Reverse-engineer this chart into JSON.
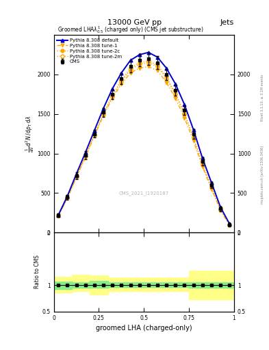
{
  "title_top": "13000 GeV pp",
  "title_right": "Jets",
  "plot_title": "Groomed LHA$\\lambda^{1}_{0.5}$ (charged only) (CMS jet substructure)",
  "xlabel": "groomed LHA (charged-only)",
  "ylabel_ratio": "Ratio to CMS",
  "watermark": "CMS_2021_I1920187",
  "rivet_text": "Rivet 3.1.10, ≥ 3.1M events",
  "inspire_text": "mcplots.cern.ch [arXiv:1306.3436]",
  "x_data": [
    0.025,
    0.075,
    0.125,
    0.175,
    0.225,
    0.275,
    0.325,
    0.375,
    0.425,
    0.475,
    0.525,
    0.575,
    0.625,
    0.675,
    0.725,
    0.775,
    0.825,
    0.875,
    0.925,
    0.975
  ],
  "cms_data": [
    220,
    450,
    720,
    980,
    1250,
    1520,
    1750,
    1950,
    2100,
    2180,
    2200,
    2150,
    2000,
    1800,
    1550,
    1250,
    900,
    600,
    300,
    100
  ],
  "cms_errors": [
    20,
    30,
    40,
    50,
    50,
    60,
    60,
    70,
    70,
    80,
    80,
    80,
    70,
    70,
    60,
    60,
    50,
    40,
    30,
    20
  ],
  "pythia_default": [
    220,
    460,
    740,
    1010,
    1290,
    1570,
    1820,
    2020,
    2180,
    2250,
    2280,
    2220,
    2080,
    1880,
    1620,
    1300,
    940,
    630,
    320,
    110
  ],
  "pythia_tune1": [
    210,
    430,
    700,
    950,
    1220,
    1480,
    1700,
    1880,
    2020,
    2080,
    2100,
    2050,
    1900,
    1700,
    1450,
    1160,
    830,
    550,
    280,
    90
  ],
  "pythia_tune2c": [
    220,
    440,
    710,
    970,
    1240,
    1510,
    1740,
    1930,
    2080,
    2150,
    2170,
    2120,
    1970,
    1760,
    1510,
    1210,
    870,
    570,
    290,
    100
  ],
  "pythia_tune2m": [
    210,
    430,
    700,
    960,
    1230,
    1490,
    1720,
    1910,
    2060,
    2130,
    2150,
    2100,
    1950,
    1750,
    1500,
    1200,
    860,
    570,
    290,
    100
  ],
  "color_default": "#0000cc",
  "color_tune1": "#ffa500",
  "color_tune2c": "#ffa500",
  "color_tune2m": "#ffa500",
  "color_cms": "#000000",
  "ratio_x_edges": [
    0.0,
    0.1,
    0.2,
    0.3,
    0.4,
    0.5,
    0.6,
    0.7,
    0.75,
    0.8,
    0.9,
    1.0
  ],
  "green_band_lo": [
    0.93,
    0.95,
    0.95,
    0.96,
    0.96,
    0.96,
    0.96,
    0.96,
    0.95,
    0.95,
    0.95,
    0.95
  ],
  "green_band_hi": [
    1.07,
    1.05,
    1.08,
    1.05,
    1.05,
    1.05,
    1.05,
    1.05,
    1.06,
    1.06,
    1.06,
    1.06
  ],
  "yellow_band_lo": [
    0.86,
    0.88,
    0.82,
    0.88,
    0.88,
    0.88,
    0.88,
    0.88,
    0.73,
    0.73,
    0.73,
    0.73
  ],
  "yellow_band_hi": [
    1.16,
    1.2,
    1.18,
    1.15,
    1.15,
    1.15,
    1.15,
    1.15,
    1.28,
    1.28,
    1.28,
    1.28
  ],
  "ylim_main": [
    0,
    2500
  ],
  "ylim_ratio": [
    0.5,
    2.0
  ],
  "bg_color": "#ffffff"
}
